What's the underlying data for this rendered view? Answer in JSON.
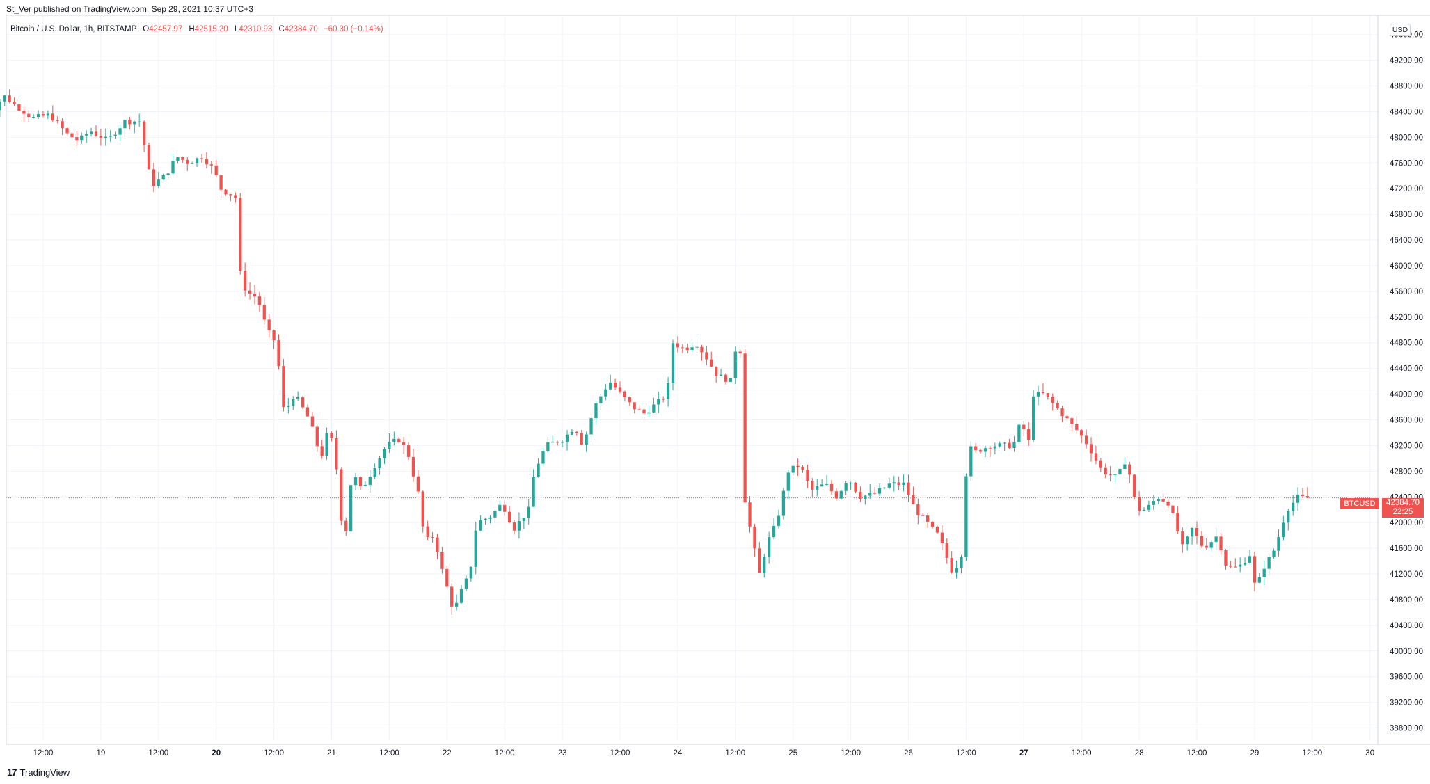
{
  "header": {
    "published": "St_Ver published on TradingView.com, Sep 29, 2021 10:37 UTC+3"
  },
  "legend": {
    "symbol": "Bitcoin / U.S. Dollar, 1h, BITSTAMP",
    "o_label": "O",
    "o_value": "42457.97",
    "h_label": "H",
    "h_value": "42515.20",
    "l_label": "L",
    "l_value": "42310.93",
    "c_label": "C",
    "c_value": "42384.70",
    "change": "−60.30 (−0.14%)"
  },
  "price_axis": {
    "currency": "USD",
    "last_symbol": "BTCUSD",
    "last_price": "42384.70",
    "countdown": "22:25"
  },
  "footer": {
    "brand": "TradingView",
    "icon": "tradingview-logo-icon"
  },
  "colors": {
    "up": "#26a69a",
    "down": "#ef5350",
    "grid": "#f0f3fa",
    "axis_text": "#131722"
  },
  "chart_data": {
    "type": "candlestick",
    "symbol": "BTCUSD",
    "interval": "1h",
    "ylim": [
      38600,
      49900
    ],
    "yticks": [
      38800,
      39200,
      39600,
      40000,
      40400,
      40800,
      41200,
      41600,
      42000,
      42400,
      42800,
      43200,
      43600,
      44000,
      44400,
      44800,
      45200,
      45600,
      46000,
      46400,
      46800,
      47200,
      47600,
      48000,
      48400,
      48800,
      49200,
      49600
    ],
    "xticks": [
      "12:00",
      "19",
      "12:00",
      "20",
      "12:00",
      "21",
      "12:00",
      "22",
      "12:00",
      "23",
      "12:00",
      "24",
      "12:00",
      "25",
      "12:00",
      "26",
      "12:00",
      "27",
      "12:00",
      "28",
      "12:00",
      "29",
      "12:00",
      "30"
    ],
    "xticks_bold": [
      "20",
      "27"
    ],
    "last_price": 42384.7,
    "grid": true,
    "price_path": [
      [
        18.0,
        47700
      ],
      [
        18.1,
        48400
      ],
      [
        18.2,
        48650
      ],
      [
        18.3,
        48500
      ],
      [
        18.45,
        48300
      ],
      [
        18.6,
        48350
      ],
      [
        18.75,
        48050
      ],
      [
        18.85,
        47950
      ],
      [
        18.95,
        48100
      ],
      [
        19.1,
        47950
      ],
      [
        19.25,
        48250
      ],
      [
        19.38,
        48250
      ],
      [
        19.48,
        47250
      ],
      [
        19.6,
        47400
      ],
      [
        19.7,
        47700
      ],
      [
        19.8,
        47600
      ],
      [
        19.92,
        47700
      ],
      [
        20.02,
        47500
      ],
      [
        20.08,
        47200
      ],
      [
        20.22,
        47050
      ],
      [
        20.23,
        46000
      ],
      [
        20.3,
        45600
      ],
      [
        20.4,
        45500
      ],
      [
        20.48,
        45000
      ],
      [
        20.56,
        44800
      ],
      [
        20.63,
        43700
      ],
      [
        20.72,
        44000
      ],
      [
        20.85,
        43600
      ],
      [
        20.95,
        43000
      ],
      [
        21.02,
        43500
      ],
      [
        21.08,
        42900
      ],
      [
        21.15,
        41600
      ],
      [
        21.22,
        42800
      ],
      [
        21.3,
        42500
      ],
      [
        21.42,
        42900
      ],
      [
        21.52,
        43200
      ],
      [
        21.62,
        43300
      ],
      [
        21.7,
        43100
      ],
      [
        21.8,
        42400
      ],
      [
        21.85,
        41700
      ],
      [
        21.93,
        41800
      ],
      [
        22.02,
        41100
      ],
      [
        22.06,
        40900
      ],
      [
        22.1,
        40600
      ],
      [
        22.18,
        41000
      ],
      [
        22.24,
        41200
      ],
      [
        22.3,
        42000
      ],
      [
        22.42,
        42100
      ],
      [
        22.52,
        42300
      ],
      [
        22.62,
        41900
      ],
      [
        22.75,
        42200
      ],
      [
        22.8,
        42800
      ],
      [
        22.9,
        43200
      ],
      [
        23.05,
        43300
      ],
      [
        23.15,
        43500
      ],
      [
        23.22,
        43200
      ],
      [
        23.32,
        43800
      ],
      [
        23.45,
        44200
      ],
      [
        23.55,
        44000
      ],
      [
        23.65,
        43800
      ],
      [
        23.75,
        43700
      ],
      [
        23.82,
        43800
      ],
      [
        23.95,
        44000
      ],
      [
        24.0,
        44800
      ],
      [
        24.1,
        44700
      ],
      [
        24.2,
        44800
      ],
      [
        24.28,
        44600
      ],
      [
        24.38,
        44300
      ],
      [
        24.5,
        44200
      ],
      [
        24.56,
        44900
      ],
      [
        24.6,
        44500
      ],
      [
        24.62,
        42400
      ],
      [
        24.68,
        41800
      ],
      [
        24.75,
        41200
      ],
      [
        24.82,
        41700
      ],
      [
        24.9,
        42000
      ],
      [
        24.95,
        42400
      ],
      [
        25.0,
        42800
      ],
      [
        25.1,
        42900
      ],
      [
        25.2,
        42500
      ],
      [
        25.32,
        42600
      ],
      [
        25.42,
        42400
      ],
      [
        25.52,
        42700
      ],
      [
        25.62,
        42400
      ],
      [
        25.75,
        42450
      ],
      [
        25.88,
        42600
      ],
      [
        26.0,
        42600
      ],
      [
        26.1,
        42200
      ],
      [
        26.2,
        42000
      ],
      [
        26.3,
        41800
      ],
      [
        26.43,
        41200
      ],
      [
        26.52,
        41600
      ],
      [
        26.55,
        43200
      ],
      [
        26.62,
        43100
      ],
      [
        26.75,
        43200
      ],
      [
        26.88,
        43200
      ],
      [
        26.95,
        43200
      ],
      [
        27.02,
        43600
      ],
      [
        27.08,
        43200
      ],
      [
        27.12,
        44000
      ],
      [
        27.22,
        44000
      ],
      [
        27.32,
        43800
      ],
      [
        27.42,
        43600
      ],
      [
        27.52,
        43400
      ],
      [
        27.6,
        43200
      ],
      [
        27.72,
        42800
      ],
      [
        27.85,
        42700
      ],
      [
        27.93,
        43000
      ],
      [
        28.02,
        42200
      ],
      [
        28.1,
        42200
      ],
      [
        28.2,
        42400
      ],
      [
        28.3,
        42300
      ],
      [
        28.42,
        41600
      ],
      [
        28.5,
        41900
      ],
      [
        28.6,
        41600
      ],
      [
        28.72,
        41800
      ],
      [
        28.8,
        41300
      ],
      [
        28.9,
        41300
      ],
      [
        29.0,
        41500
      ],
      [
        29.05,
        40950
      ],
      [
        29.12,
        41300
      ],
      [
        29.22,
        41600
      ],
      [
        29.32,
        42200
      ],
      [
        29.42,
        42400
      ],
      [
        29.46,
        42385
      ]
    ]
  }
}
